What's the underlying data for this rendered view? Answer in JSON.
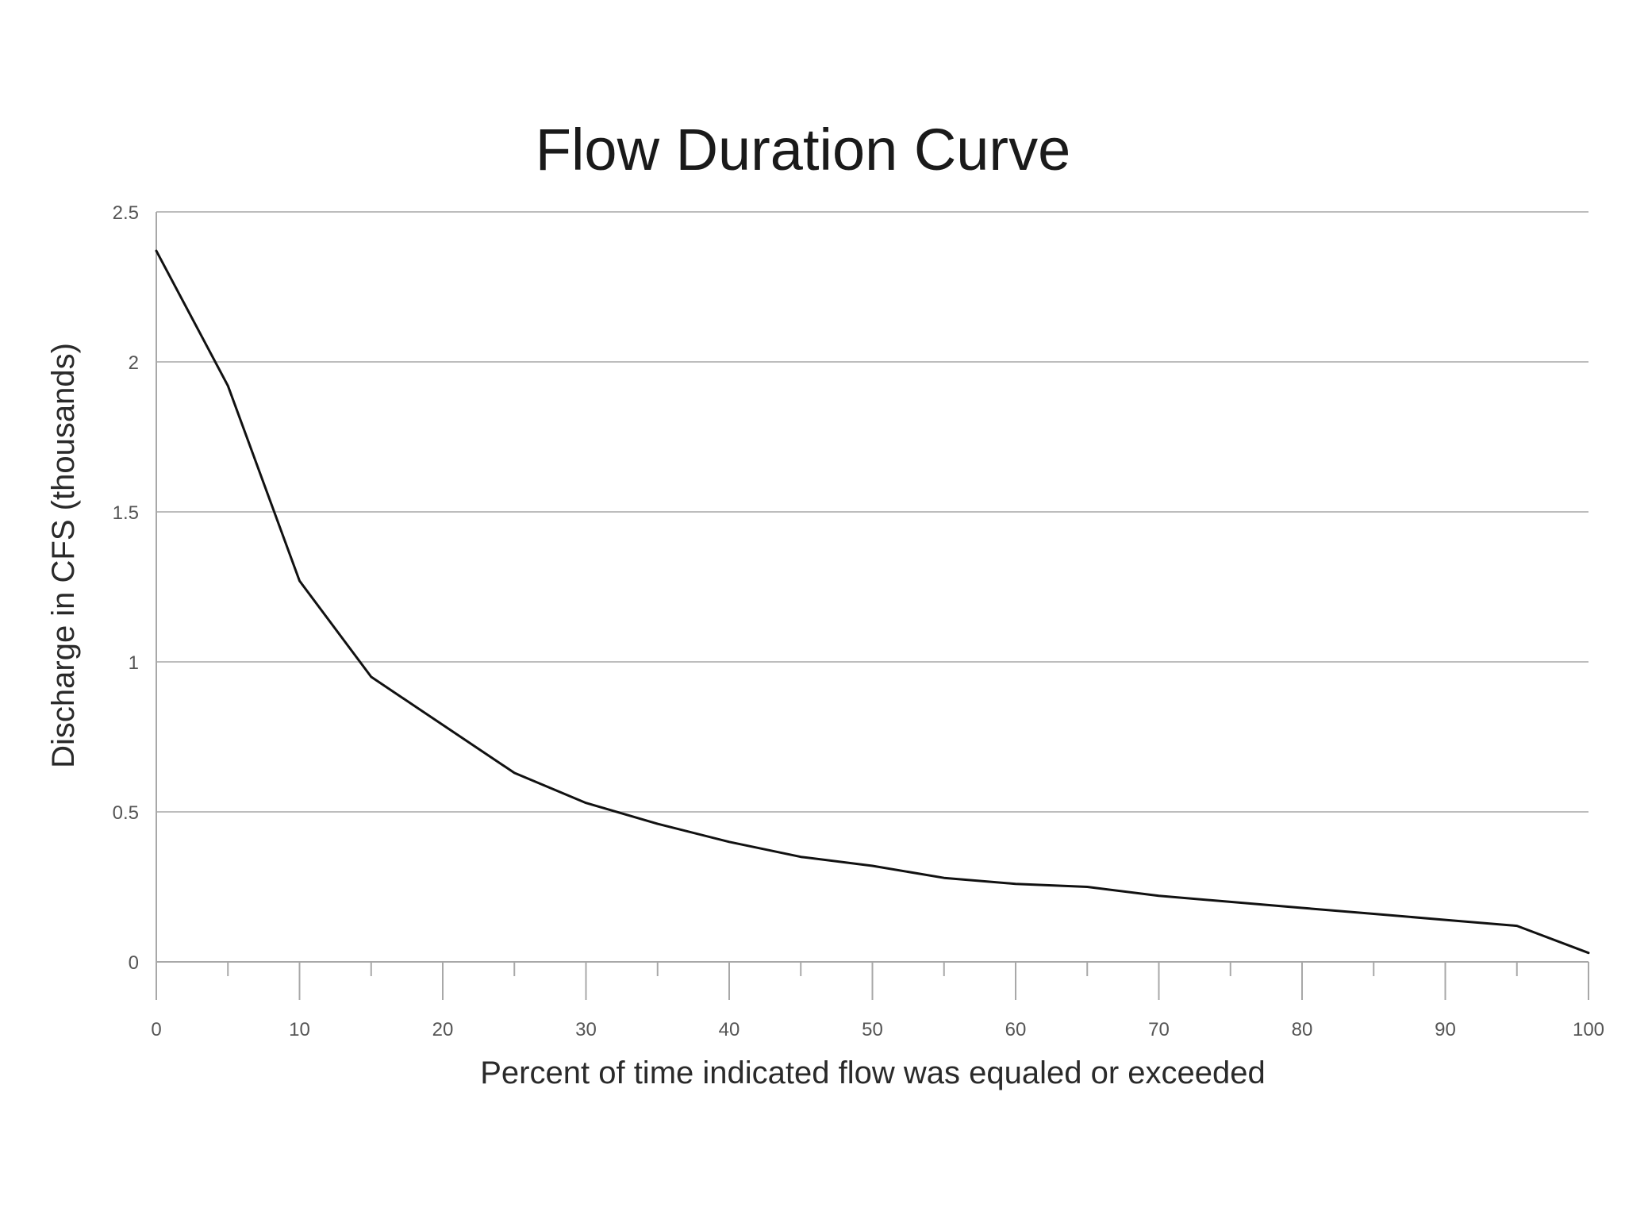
{
  "chart_data": {
    "type": "line",
    "title": "Flow Duration Curve",
    "xlabel": "Percent of time indicated flow was equaled or exceeded",
    "ylabel": "Discharge in CFS (thousands)",
    "xlim": [
      0,
      100
    ],
    "ylim": [
      0,
      2.5
    ],
    "x_major_ticks": [
      0,
      10,
      20,
      30,
      40,
      50,
      60,
      70,
      80,
      90,
      100
    ],
    "x_minor_ticks": [
      5,
      15,
      25,
      35,
      45,
      55,
      65,
      75,
      85,
      95
    ],
    "x_tick_labels": [
      "0",
      "10",
      "20",
      "30",
      "40",
      "50",
      "60",
      "70",
      "80",
      "90",
      "100"
    ],
    "y_ticks": [
      0,
      0.5,
      1,
      1.5,
      2,
      2.5
    ],
    "y_tick_labels": [
      "0",
      "0.5",
      "1",
      "1.5",
      "2",
      "2.5"
    ],
    "grid": "horizontal",
    "series": [
      {
        "color": "#111111",
        "x": [
          0,
          5,
          10,
          15,
          20,
          25,
          30,
          35,
          40,
          45,
          50,
          55,
          60,
          65,
          70,
          75,
          80,
          85,
          90,
          95,
          100
        ],
        "values": [
          2.37,
          1.92,
          1.27,
          0.95,
          0.79,
          0.63,
          0.53,
          0.46,
          0.4,
          0.35,
          0.32,
          0.28,
          0.26,
          0.25,
          0.22,
          0.2,
          0.18,
          0.16,
          0.14,
          0.12,
          0.03
        ]
      }
    ]
  }
}
